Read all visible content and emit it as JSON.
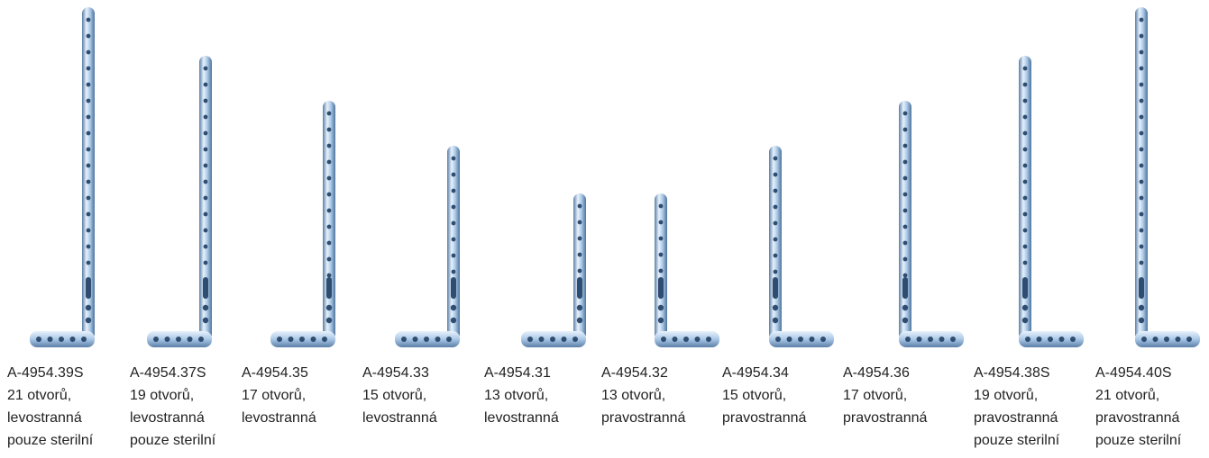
{
  "colors": {
    "plate_light": "#e8f2fb",
    "plate_mid": "#a9c7e6",
    "plate_dark": "#5b7fa8",
    "hole": "#d7e6f4",
    "text": "#222222"
  },
  "plates": [
    {
      "code": "A-4954.39S",
      "holes": "21 otvorů,",
      "side": "levostranná",
      "sterile": "pouze sterilní",
      "hand": "left"
    },
    {
      "code": "A-4954.37S",
      "holes": "19 otvorů,",
      "side": "levostranná",
      "sterile": "pouze sterilní",
      "hand": "left"
    },
    {
      "code": "A-4954.35",
      "holes": "17 otvorů,",
      "side": "levostranná",
      "sterile": "",
      "hand": "left"
    },
    {
      "code": "A-4954.33",
      "holes": "15 otvorů,",
      "side": "levostranná",
      "sterile": "",
      "hand": "left"
    },
    {
      "code": "A-4954.31",
      "holes": "13 otvorů,",
      "side": "levostranná",
      "sterile": "",
      "hand": "left"
    },
    {
      "code": "A-4954.32",
      "holes": "13 otvorů,",
      "side": "pravostranná",
      "sterile": "",
      "hand": "right"
    },
    {
      "code": "A-4954.34",
      "holes": "15 otvorů,",
      "side": "pravostranná",
      "sterile": "",
      "hand": "right"
    },
    {
      "code": "A-4954.36",
      "holes": "17 otvorů,",
      "side": "pravostranná",
      "sterile": "",
      "hand": "right"
    },
    {
      "code": "A-4954.38S",
      "holes": "19 otvorů,",
      "side": "pravostranná",
      "sterile": "pouze sterilní",
      "hand": "right"
    },
    {
      "code": "A-4954.40S",
      "holes": "21 otvorů,",
      "side": "pravostranná",
      "sterile": "pouze sterilní",
      "hand": "right"
    }
  ]
}
